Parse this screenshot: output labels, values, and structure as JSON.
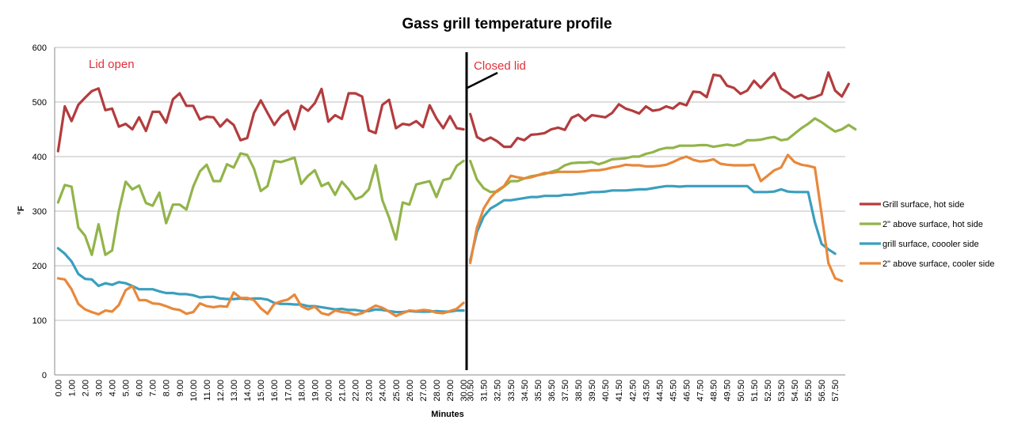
{
  "chart_data": {
    "type": "line",
    "title": "Gass grill temperature profile",
    "xlabel": "Minutes",
    "ylabel": "°F",
    "ylim": [
      0,
      600
    ],
    "yticks": [
      0,
      100,
      200,
      300,
      400,
      500,
      600
    ],
    "grid": "horizontal",
    "legend_position": "right",
    "x_start": 0,
    "x_step": 0.5,
    "x_label_every": 2,
    "x_end_label": "57.50",
    "series": [
      {
        "name": "Grill surface, hot side",
        "color": "#b33c3e",
        "segments": [
          [
            410,
            492,
            465,
            495,
            508,
            520,
            525,
            485,
            488,
            455,
            460,
            450,
            472,
            447,
            482,
            482,
            462,
            505,
            516,
            493,
            493,
            468,
            473,
            472,
            455,
            468,
            458,
            430,
            434,
            480,
            503,
            480,
            458,
            475,
            484,
            450,
            493,
            484,
            498,
            524,
            464,
            476,
            469,
            516,
            516,
            510,
            448,
            443,
            495,
            504,
            452,
            460,
            458,
            465,
            454,
            494,
            470,
            452,
            474,
            452,
            450
          ],
          [
            478,
            436,
            429,
            435,
            428,
            418,
            418,
            434,
            430,
            440,
            441,
            443,
            450,
            453,
            449,
            471,
            477,
            466,
            476,
            474,
            472,
            480,
            496,
            488,
            484,
            479,
            492,
            484,
            486,
            492,
            488,
            498,
            494,
            519,
            518,
            509,
            550,
            548,
            530,
            526,
            515,
            521,
            539,
            526,
            540,
            553,
            525,
            517,
            508,
            513,
            506,
            509,
            514,
            554,
            521,
            510,
            533
          ]
        ]
      },
      {
        "name": "2\" above surface, hot side",
        "color": "#92b44a",
        "segments": [
          [
            316,
            348,
            345,
            270,
            255,
            220,
            276,
            220,
            228,
            300,
            354,
            340,
            347,
            315,
            310,
            334,
            278,
            312,
            312,
            303,
            345,
            373,
            385,
            355,
            355,
            386,
            380,
            406,
            403,
            378,
            337,
            346,
            392,
            390,
            394,
            398,
            350,
            365,
            375,
            346,
            352,
            330,
            354,
            340,
            322,
            327,
            340,
            384,
            320,
            288,
            248,
            316,
            312,
            349,
            352,
            355,
            326,
            357,
            360,
            383,
            392
          ],
          [
            392,
            358,
            342,
            335,
            336,
            345,
            355,
            355,
            360,
            364,
            366,
            368,
            372,
            376,
            384,
            388,
            389,
            389,
            390,
            386,
            390,
            395,
            396,
            397,
            400,
            400,
            405,
            408,
            413,
            416,
            416,
            420,
            420,
            420,
            421,
            421,
            418,
            420,
            422,
            420,
            423,
            430,
            430,
            431,
            434,
            436,
            430,
            432,
            442,
            452,
            460,
            470,
            463,
            454,
            446,
            450,
            458,
            450
          ]
        ]
      },
      {
        "name": "grill surface, coooler side",
        "color": "#3a9fbe",
        "segments": [
          [
            232,
            222,
            208,
            185,
            176,
            175,
            163,
            168,
            165,
            170,
            168,
            163,
            157,
            157,
            157,
            153,
            150,
            150,
            148,
            148,
            146,
            142,
            143,
            143,
            140,
            139,
            139,
            140,
            139,
            140,
            140,
            138,
            132,
            130,
            130,
            129,
            129,
            126,
            126,
            124,
            122,
            120,
            121,
            119,
            119,
            117,
            117,
            120,
            119,
            117,
            115,
            115,
            117,
            116,
            116,
            116,
            117,
            116,
            116,
            118,
            118
          ],
          [
            210,
            262,
            290,
            305,
            312,
            320,
            320,
            322,
            324,
            326,
            326,
            328,
            328,
            328,
            330,
            330,
            332,
            333,
            335,
            335,
            336,
            338,
            338,
            338,
            339,
            340,
            340,
            342,
            344,
            346,
            346,
            345,
            346,
            346,
            346,
            346,
            346,
            346,
            346,
            346,
            346,
            346,
            335,
            335,
            335,
            336,
            340,
            336,
            335,
            335,
            335,
            280,
            240,
            230,
            222
          ]
        ]
      },
      {
        "name": "2\" above surface, cooler side",
        "color": "#e8883a",
        "segments": [
          [
            177,
            175,
            157,
            130,
            120,
            115,
            111,
            118,
            116,
            128,
            155,
            163,
            137,
            137,
            131,
            130,
            126,
            121,
            119,
            112,
            115,
            131,
            126,
            124,
            126,
            125,
            151,
            141,
            141,
            137,
            122,
            112,
            130,
            135,
            138,
            147,
            126,
            120,
            125,
            113,
            110,
            118,
            115,
            114,
            110,
            113,
            120,
            127,
            123,
            116,
            108,
            113,
            118,
            117,
            119,
            118,
            114,
            113,
            117,
            121,
            132
          ],
          [
            205,
            270,
            305,
            325,
            338,
            346,
            365,
            362,
            360,
            362,
            366,
            370,
            370,
            372,
            372,
            372,
            372,
            373,
            375,
            375,
            377,
            380,
            382,
            385,
            384,
            384,
            382,
            382,
            383,
            385,
            390,
            396,
            400,
            394,
            391,
            392,
            395,
            387,
            385,
            384,
            384,
            384,
            385,
            355,
            365,
            375,
            380,
            403,
            390,
            385,
            383,
            380,
            295,
            205,
            177,
            172
          ]
        ]
      }
    ],
    "annotations": [
      {
        "text": "Lid open",
        "color": "#e0303a"
      },
      {
        "text": "Closed lid",
        "color": "#e0303a"
      }
    ]
  }
}
